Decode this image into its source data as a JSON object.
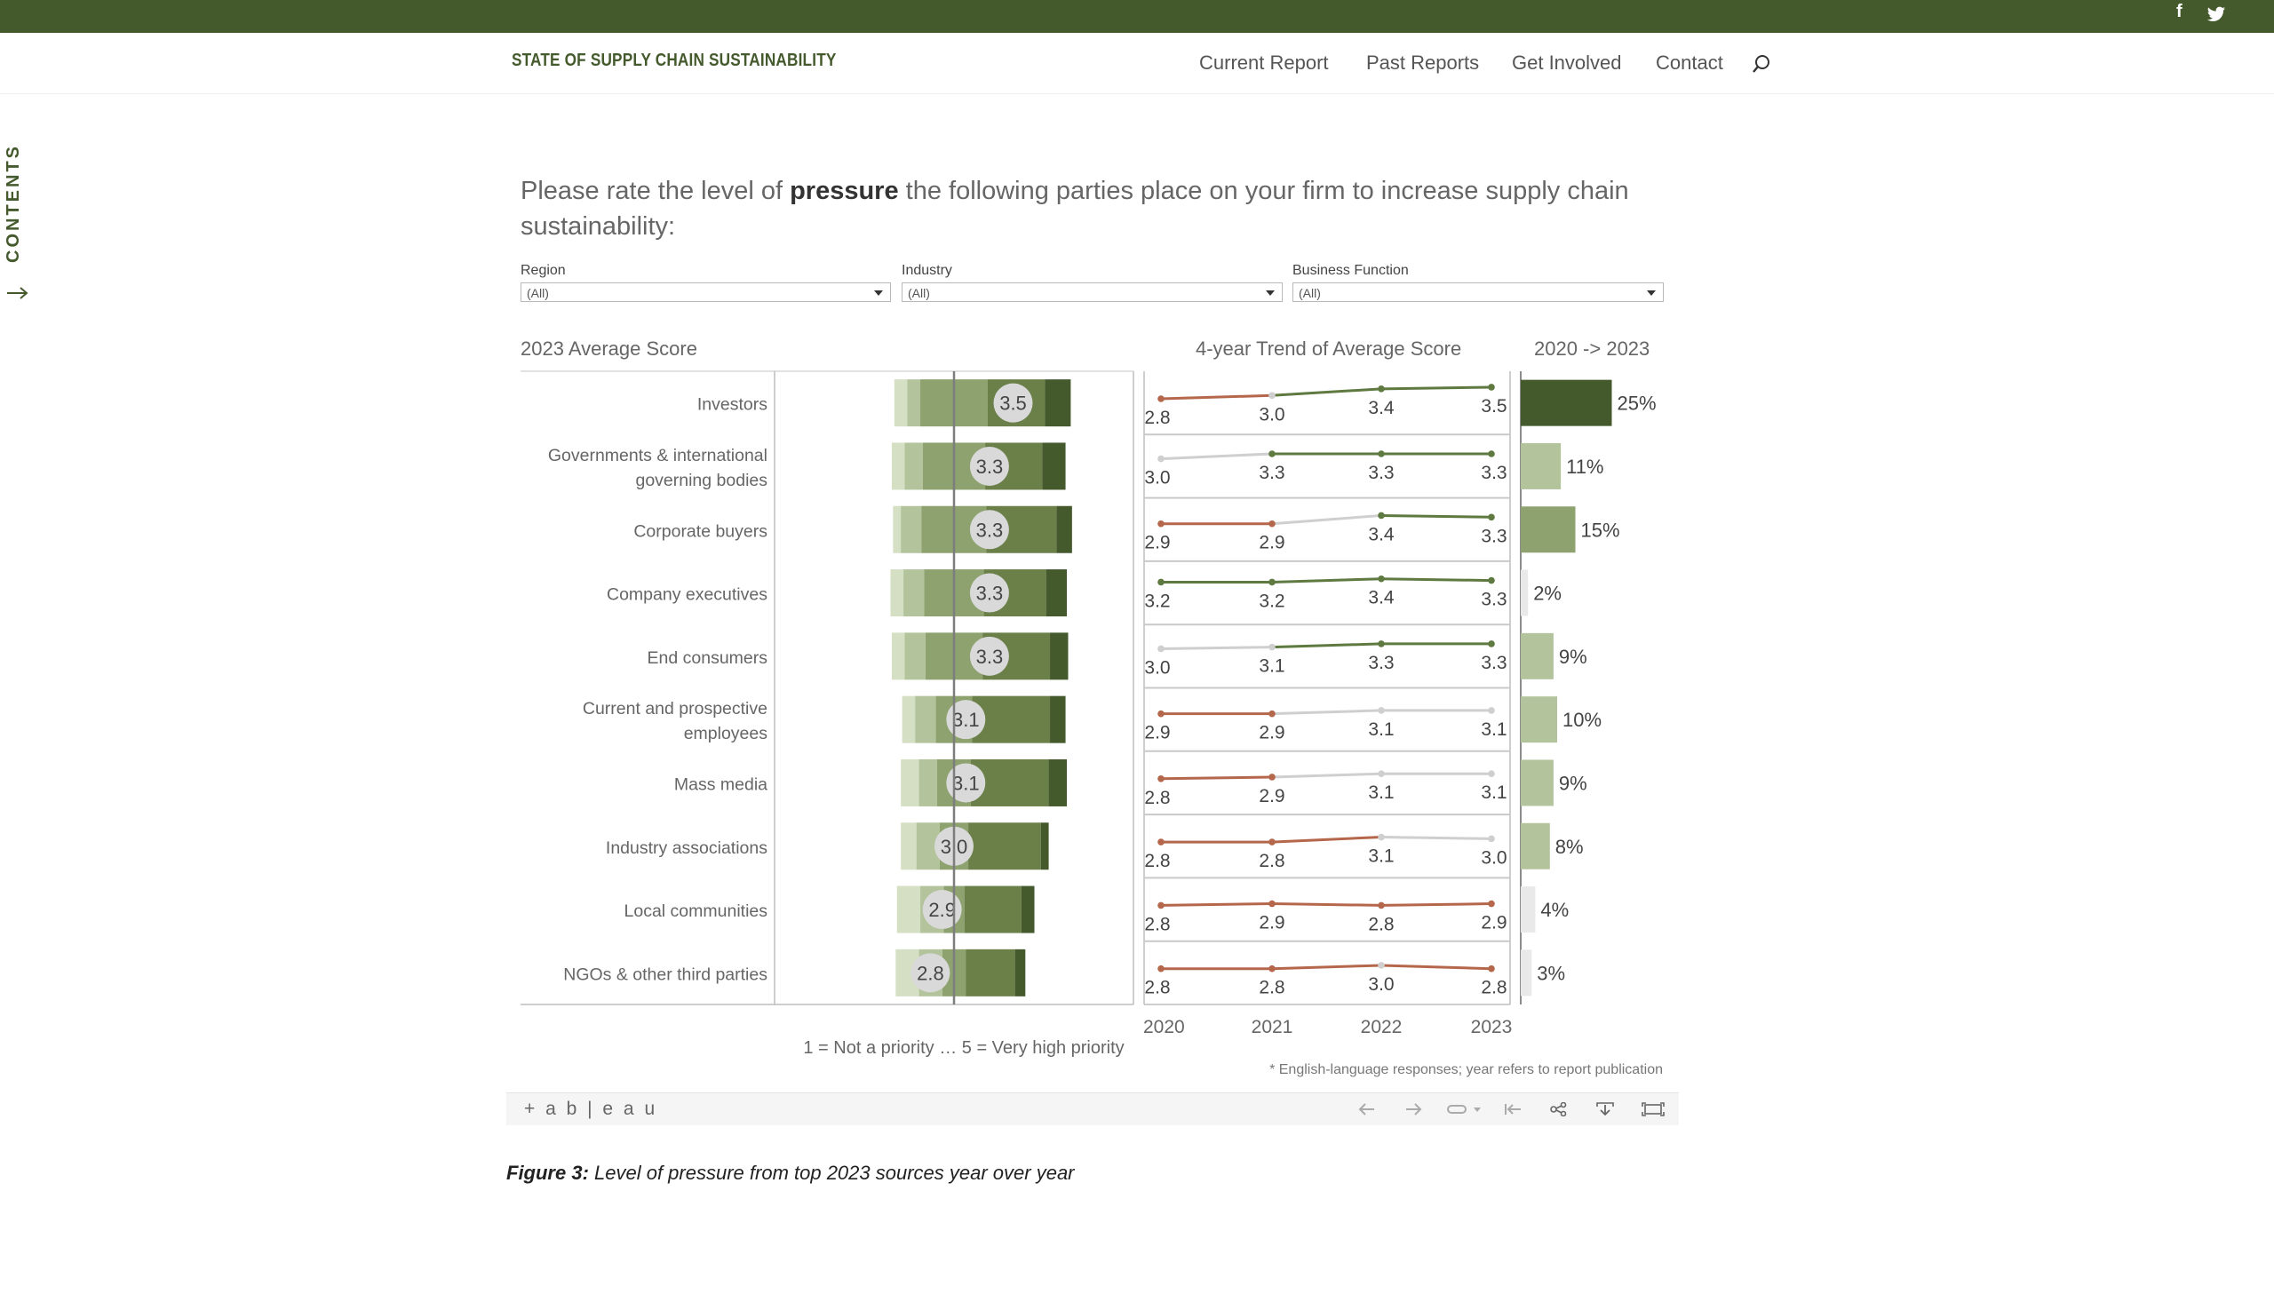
{
  "site": {
    "brand": "STATE OF SUPPLY CHAIN SUSTAINABILITY",
    "nav": [
      "Current Report",
      "Past Reports",
      "Get Involved",
      "Contact"
    ],
    "contents_label": "CONTENTS",
    "social": [
      "f",
      "twitter-icon"
    ]
  },
  "question": {
    "pre": "Please rate the level of ",
    "bold": "pressure",
    "post": " the following parties place on your firm to increase supply chain sustainability:"
  },
  "filters": [
    {
      "label": "Region",
      "value": "(All)"
    },
    {
      "label": "Industry",
      "value": "(All)"
    },
    {
      "label": "Business Function",
      "value": "(All)"
    }
  ],
  "colors": {
    "brand": "#445a2d",
    "shades": [
      "#d4dfc4",
      "#b3c49c",
      "#8da26f",
      "#6b8049",
      "#445a2d"
    ],
    "trend_low": "#b5674c",
    "trend_mid": "#cfcfcf",
    "trend_high": "#5f7a40"
  },
  "chart_data": [
    {
      "type": "bar",
      "title": "2023 Average Score",
      "note": "1 = Not a priority … 5 = Very high priority",
      "categories": [
        "Investors",
        "Governments & international governing bodies",
        "Corporate buyers",
        "Company executives",
        "End consumers",
        "Current and prospective employees",
        "Mass media",
        "Industry associations",
        "Local communities",
        "NGOs & other third parties"
      ],
      "category_lines": [
        [
          "Investors"
        ],
        [
          "Governments & international",
          "governing bodies"
        ],
        [
          "Corporate buyers"
        ],
        [
          "Company executives"
        ],
        [
          "End consumers"
        ],
        [
          "Current and prospective",
          "employees"
        ],
        [
          "Mass media"
        ],
        [
          "Industry associations"
        ],
        [
          "Local communities"
        ],
        [
          "NGOs & other third parties"
        ]
      ],
      "average": [
        "3.5",
        "3.3",
        "3.3",
        "3.3",
        "3.3",
        "3.1",
        "3.1",
        "3.0",
        "2.9",
        "2.8"
      ],
      "distribution_pct": [
        [
          5,
          5,
          26,
          22,
          10
        ],
        [
          5,
          7,
          24,
          22,
          9
        ],
        [
          3,
          8,
          25,
          27,
          6
        ],
        [
          5,
          8,
          23,
          24,
          8
        ],
        [
          5,
          8,
          22,
          26,
          7
        ],
        [
          5,
          8,
          14,
          30,
          6
        ],
        [
          7,
          7,
          13,
          30,
          7
        ],
        [
          6,
          9,
          11,
          28,
          3
        ],
        [
          9,
          9,
          8,
          22,
          5
        ],
        [
          9,
          9,
          9,
          19,
          4
        ]
      ]
    },
    {
      "type": "line",
      "title": "4-year Trend of Average Score",
      "x": [
        "2020",
        "2021",
        "2022",
        "2023"
      ],
      "series": [
        {
          "values": [
            2.8,
            3.0,
            3.4,
            3.5
          ],
          "labels": [
            "2.8",
            "3.0",
            "3.4",
            "3.5"
          ]
        },
        {
          "values": [
            3.0,
            3.3,
            3.3,
            3.3
          ],
          "labels": [
            "3.0",
            "3.3",
            "3.3",
            "3.3"
          ]
        },
        {
          "values": [
            2.9,
            2.9,
            3.4,
            3.3
          ],
          "labels": [
            "2.9",
            "2.9",
            "3.4",
            "3.3"
          ]
        },
        {
          "values": [
            3.2,
            3.2,
            3.4,
            3.3
          ],
          "labels": [
            "3.2",
            "3.2",
            "3.4",
            "3.3"
          ]
        },
        {
          "values": [
            3.0,
            3.1,
            3.3,
            3.3
          ],
          "labels": [
            "3.0",
            "3.1",
            "3.3",
            "3.3"
          ]
        },
        {
          "values": [
            2.9,
            2.9,
            3.1,
            3.1
          ],
          "labels": [
            "2.9",
            "2.9",
            "3.1",
            "3.1"
          ]
        },
        {
          "values": [
            2.8,
            2.9,
            3.1,
            3.1
          ],
          "labels": [
            "2.8",
            "2.9",
            "3.1",
            "3.1"
          ]
        },
        {
          "values": [
            2.8,
            2.8,
            3.1,
            3.0
          ],
          "labels": [
            "2.8",
            "2.8",
            "3.1",
            "3.0"
          ]
        },
        {
          "values": [
            2.8,
            2.9,
            2.8,
            2.9
          ],
          "labels": [
            "2.8",
            "2.9",
            "2.8",
            "2.9"
          ]
        },
        {
          "values": [
            2.8,
            2.8,
            3.0,
            2.8
          ],
          "labels": [
            "2.8",
            "2.8",
            "3.0",
            "2.8"
          ]
        }
      ]
    },
    {
      "type": "bar",
      "title": "2020 -> 2023",
      "values": [
        25,
        11,
        15,
        2,
        9,
        10,
        9,
        8,
        4,
        3
      ],
      "labels": [
        "25%",
        "11%",
        "15%",
        "2%",
        "9%",
        "10%",
        "9%",
        "8%",
        "4%",
        "3%"
      ],
      "footnote": "* English-language responses; year refers to report publication"
    }
  ],
  "toolbar": {
    "logo": "+ a b | e a u"
  },
  "caption": {
    "bold": "Figure 3:",
    "text": " Level of pressure from top 2023 sources year over year"
  }
}
